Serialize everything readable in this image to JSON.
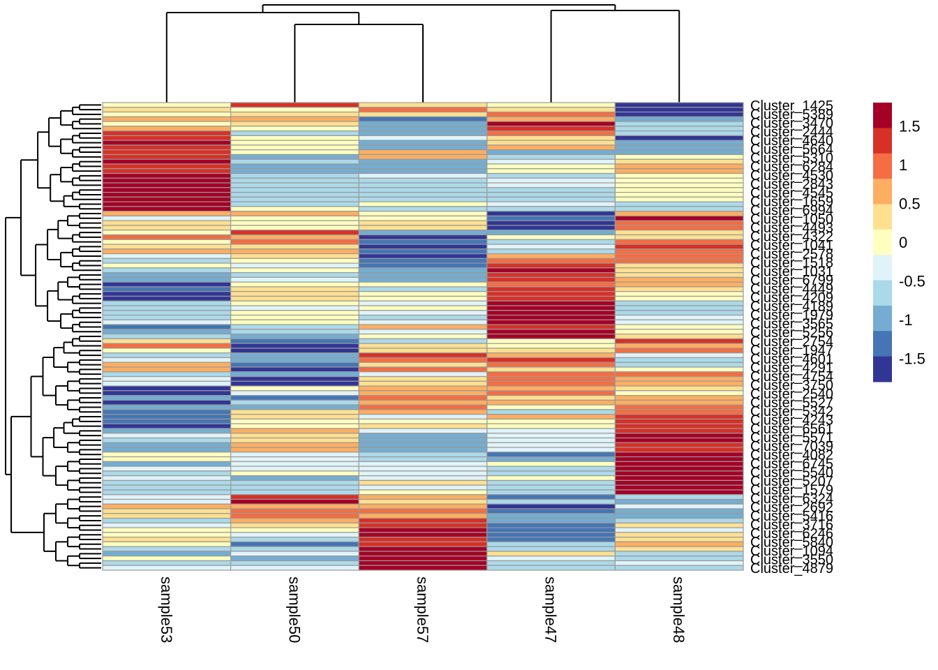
{
  "chart_data": {
    "type": "heatmap",
    "title": "",
    "columns": [
      "sample53",
      "sample50",
      "sample57",
      "sample47",
      "sample48"
    ],
    "row_label_first": "Cluster_1425",
    "row_label_last": "Cluster_4879",
    "row_labels_visible_fragments": [
      "Cluster_1425",
      "Cluster_5389",
      "Cluster_3470",
      "Cluster_2444",
      "Cluster_4640",
      "Cluster_5664",
      "Cluster_5310",
      "Cluster_6284",
      "Cluster_4530",
      "Cluster_2843",
      "Cluster_4545",
      "Cluster_1659",
      "Cluster_6994",
      "Cluster_1050",
      "Cluster_4493",
      "Cluster_4322",
      "Cluster_1041",
      "Cluster_2578",
      "Cluster_1518",
      "Cluster_1031",
      "Cluster_6799",
      "Cluster_4449",
      "Cluster_4209",
      "Cluster_4189",
      "Cluster_1979",
      "Cluster_3565",
      "Cluster_5256",
      "Cluster_2754",
      "Cluster_1947",
      "Cluster_4601",
      "Cluster_4291",
      "Cluster_4754",
      "Cluster_3750",
      "Cluster_2540",
      "Cluster_5527",
      "Cluster_5342",
      "Cluster_4243",
      "Cluster_6561",
      "Cluster_5571",
      "Cluster_7039",
      "Cluster_4082",
      "Cluster_6745",
      "Cluster_5540",
      "Cluster_5207",
      "Cluster_1579",
      "Cluster_6324",
      "Cluster_2692",
      "Cluster_5416",
      "Cluster_3716",
      "Cluster_6246",
      "Cluster_5840",
      "Cluster_1094",
      "Cluster_3550",
      "Cluster_4879"
    ],
    "legend": {
      "ticks": [
        1.5,
        1,
        0.5,
        0,
        -0.5,
        -1,
        -1.5
      ],
      "tick_labels": [
        "1.5",
        "1",
        "0.5",
        "0",
        "-0.5",
        "-1",
        "-1.5"
      ],
      "range": [
        -1.8,
        1.8
      ],
      "colors": [
        "#313695",
        "#4575B4",
        "#74ADD1",
        "#ABD9E9",
        "#E0F3F8",
        "#FFFFBF",
        "#FEE090",
        "#FDAE61",
        "#F46D43",
        "#D73027",
        "#A50026"
      ],
      "placement": "right"
    },
    "level_values": [
      -1.64,
      -1.31,
      -0.98,
      -0.65,
      -0.33,
      0.0,
      0.33,
      0.65,
      0.98,
      1.31,
      1.64
    ],
    "row_levels": [
      [
        5,
        9,
        6,
        5,
        0
      ],
      [
        6,
        5,
        8,
        6,
        0
      ],
      [
        5,
        6,
        6,
        8,
        0
      ],
      [
        7,
        7,
        1,
        7,
        2
      ],
      [
        5,
        6,
        2,
        10,
        3
      ],
      [
        7,
        5,
        2,
        9,
        3
      ],
      [
        9,
        3,
        2,
        8,
        3
      ],
      [
        9,
        5,
        4,
        6,
        0
      ],
      [
        10,
        5,
        2,
        6,
        2
      ],
      [
        9,
        5,
        2,
        7,
        2
      ],
      [
        9,
        5,
        7,
        2,
        2
      ],
      [
        9,
        2,
        7,
        3,
        5
      ],
      [
        10,
        3,
        2,
        4,
        6
      ],
      [
        9,
        2,
        2,
        5,
        7
      ],
      [
        9,
        2,
        2,
        5,
        7
      ],
      [
        10,
        3,
        4,
        3,
        5
      ],
      [
        10,
        3,
        3,
        4,
        5
      ],
      [
        10,
        3,
        3,
        4,
        5
      ],
      [
        10,
        3,
        3,
        3,
        5
      ],
      [
        10,
        3,
        3,
        3,
        5
      ],
      [
        10,
        3,
        3,
        3,
        5
      ],
      [
        10,
        3,
        5,
        4,
        3
      ],
      [
        10,
        5,
        3,
        3,
        3
      ],
      [
        7,
        7,
        5,
        0,
        7
      ],
      [
        4,
        5,
        5,
        1,
        10
      ],
      [
        6,
        5,
        6,
        0,
        8
      ],
      [
        6,
        5,
        6,
        0,
        8
      ],
      [
        5,
        9,
        2,
        2,
        6
      ],
      [
        8,
        7,
        0,
        5,
        6
      ],
      [
        5,
        8,
        1,
        3,
        8
      ],
      [
        6,
        6,
        0,
        4,
        9
      ],
      [
        7,
        7,
        1,
        3,
        8
      ],
      [
        4,
        6,
        0,
        7,
        8
      ],
      [
        3,
        5,
        1,
        8,
        8
      ],
      [
        5,
        4,
        1,
        9,
        6
      ],
      [
        3,
        5,
        2,
        10,
        6
      ],
      [
        2,
        3,
        2,
        9,
        6
      ],
      [
        2,
        4,
        2,
        9,
        7
      ],
      [
        0,
        5,
        5,
        8,
        7
      ],
      [
        1,
        6,
        3,
        9,
        6
      ],
      [
        0,
        6,
        5,
        9,
        5
      ],
      [
        0,
        6,
        5,
        9,
        5
      ],
      [
        3,
        5,
        4,
        10,
        3
      ],
      [
        3,
        4,
        5,
        10,
        3
      ],
      [
        3,
        5,
        4,
        10,
        3
      ],
      [
        3,
        5,
        3,
        10,
        4
      ],
      [
        4,
        5,
        4,
        10,
        4
      ],
      [
        1,
        3,
        7,
        9,
        5
      ],
      [
        2,
        3,
        4,
        10,
        5
      ],
      [
        3,
        2,
        5,
        10,
        6
      ],
      [
        6,
        1,
        3,
        5,
        9
      ],
      [
        8,
        0,
        6,
        5,
        7
      ],
      [
        5,
        0,
        6,
        6,
        8
      ],
      [
        3,
        2,
        9,
        7,
        4
      ],
      [
        4,
        2,
        8,
        9,
        3
      ],
      [
        7,
        1,
        6,
        8,
        3
      ],
      [
        7,
        0,
        8,
        6,
        5
      ],
      [
        3,
        2,
        4,
        8,
        8
      ],
      [
        4,
        0,
        6,
        8,
        7
      ],
      [
        4,
        0,
        6,
        8,
        7
      ],
      [
        0,
        5,
        7,
        7,
        6
      ],
      [
        0,
        4,
        7,
        8,
        5
      ],
      [
        2,
        1,
        8,
        6,
        7
      ],
      [
        0,
        3,
        7,
        7,
        7
      ],
      [
        2,
        2,
        8,
        5,
        8
      ],
      [
        1,
        6,
        7,
        3,
        8
      ],
      [
        1,
        6,
        4,
        7,
        9
      ],
      [
        1,
        5,
        5,
        5,
        9
      ],
      [
        0,
        5,
        6,
        5,
        9
      ],
      [
        2,
        7,
        4,
        4,
        9
      ],
      [
        4,
        6,
        2,
        4,
        10
      ],
      [
        3,
        6,
        2,
        4,
        10
      ],
      [
        2,
        7,
        2,
        4,
        9
      ],
      [
        2,
        7,
        2,
        4,
        9
      ],
      [
        5,
        4,
        3,
        1,
        10
      ],
      [
        5,
        4,
        3,
        2,
        10
      ],
      [
        2,
        4,
        4,
        5,
        10
      ],
      [
        4,
        4,
        4,
        3,
        10
      ],
      [
        3,
        5,
        4,
        3,
        10
      ],
      [
        4,
        2,
        4,
        5,
        10
      ],
      [
        3,
        3,
        6,
        3,
        10
      ],
      [
        3,
        3,
        4,
        3,
        10
      ],
      [
        3,
        3,
        5,
        3,
        10
      ],
      [
        4,
        9,
        7,
        1,
        3
      ],
      [
        4,
        10,
        6,
        3,
        2
      ],
      [
        7,
        7,
        7,
        0,
        4
      ],
      [
        6,
        8,
        8,
        1,
        2
      ],
      [
        6,
        8,
        7,
        2,
        2
      ],
      [
        3,
        7,
        9,
        2,
        3
      ],
      [
        4,
        6,
        9,
        1,
        6
      ],
      [
        5,
        5,
        10,
        1,
        4
      ],
      [
        5,
        4,
        10,
        1,
        6
      ],
      [
        6,
        3,
        9,
        1,
        6
      ],
      [
        5,
        1,
        9,
        3,
        7
      ],
      [
        3,
        3,
        10,
        3,
        6
      ],
      [
        2,
        4,
        10,
        6,
        3
      ],
      [
        5,
        2,
        10,
        4,
        3
      ],
      [
        3,
        3,
        10,
        3,
        4
      ],
      [
        4,
        4,
        10,
        3,
        3
      ]
    ],
    "column_dendrogram": {
      "merges": [
        {
          "left": "sample50",
          "right": "sample57",
          "height": 0.55
        },
        {
          "left": "sample53",
          "right": "sample50+sample57",
          "height": 0.68
        },
        {
          "left": "sample47",
          "right": "sample48",
          "height": 0.71
        },
        {
          "left": "sample53+sample50+sample57",
          "right": "sample47+sample48",
          "height": 0.78
        }
      ]
    },
    "row_dendrogram": "present-left",
    "cell_border_color": "#999999",
    "grid": false
  }
}
